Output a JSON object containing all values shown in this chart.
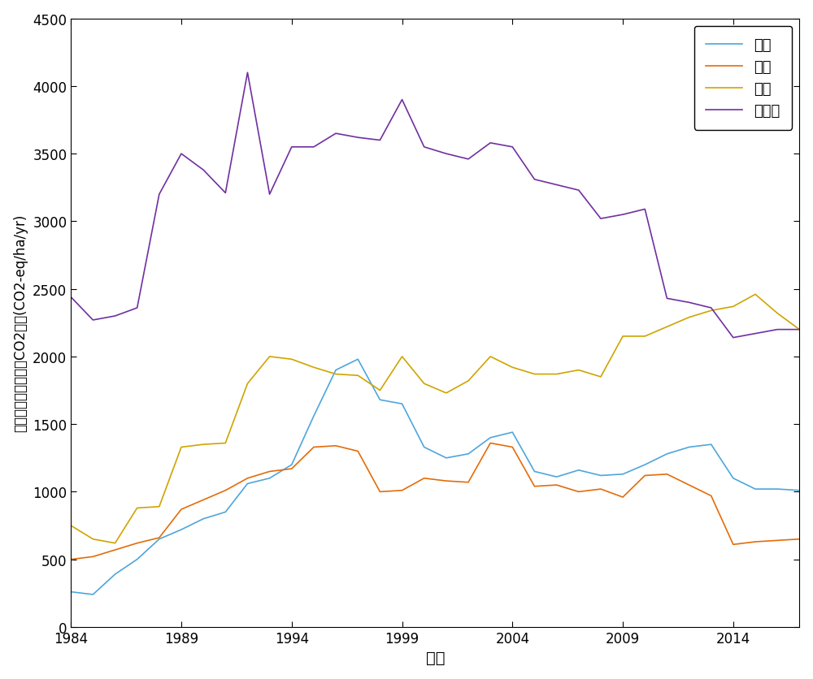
{
  "years": [
    1984,
    1985,
    1986,
    1987,
    1988,
    1989,
    1990,
    1991,
    1992,
    1993,
    1994,
    1995,
    1996,
    1997,
    1998,
    1999,
    2000,
    2001,
    2002,
    2003,
    2004,
    2005,
    2006,
    2007,
    2008,
    2009,
    2010,
    2011,
    2012,
    2013,
    2014,
    2015,
    2016,
    2017
  ],
  "soybean": [
    260,
    240,
    390,
    500,
    650,
    720,
    800,
    850,
    1060,
    1100,
    1200,
    1560,
    1900,
    1980,
    1680,
    1650,
    1330,
    1250,
    1280,
    1400,
    1440,
    1150,
    1110,
    1160,
    1120,
    1130,
    1200,
    1280,
    1330,
    1350,
    1100,
    1020,
    1020,
    1010
  ],
  "wheat": [
    500,
    520,
    570,
    620,
    660,
    870,
    940,
    1010,
    1100,
    1150,
    1170,
    1330,
    1340,
    1300,
    1000,
    1010,
    1100,
    1080,
    1070,
    1360,
    1330,
    1040,
    1050,
    1000,
    1020,
    960,
    1120,
    1130,
    1050,
    970,
    610,
    630,
    640,
    650
  ],
  "corn": [
    750,
    650,
    620,
    880,
    890,
    1330,
    1350,
    1360,
    1800,
    2000,
    1980,
    1920,
    1870,
    1860,
    1750,
    2000,
    1800,
    1730,
    1820,
    2000,
    1920,
    1870,
    1870,
    1900,
    1850,
    2150,
    2150,
    2220,
    2290,
    2340,
    2370,
    2460,
    2320,
    2200
  ],
  "single_rice": [
    2440,
    2270,
    2300,
    2360,
    3200,
    3500,
    3380,
    3210,
    4100,
    3200,
    3550,
    3550,
    3650,
    3620,
    3600,
    3900,
    3550,
    3500,
    3460,
    3580,
    3550,
    3310,
    3270,
    3230,
    3020,
    3050,
    3090,
    2430,
    2400,
    2360,
    2140,
    2170,
    2200,
    2200
  ],
  "colors": {
    "soybean": "#4EA6DC",
    "wheat": "#E36C09",
    "corn": "#CFA400",
    "single_rice": "#7030A0"
  },
  "legend_labels": {
    "soybean": "大豆",
    "wheat": "小麦",
    "corn": "玉米",
    "single_rice": "单季稻"
  },
  "xlabel": "年份",
  "ylabel_part1": "农业管理相关的单位CO",
  "ylabel_part2": "2",
  "ylabel_part3": "排放(CO",
  "ylabel_part4": "2",
  "ylabel_part5": "-eq/ha/yr)",
  "ylim": [
    0,
    4500
  ],
  "yticks": [
    0,
    500,
    1000,
    1500,
    2000,
    2500,
    3000,
    3500,
    4000,
    4500
  ],
  "xticks": [
    1984,
    1989,
    1994,
    1999,
    2004,
    2009,
    2014
  ],
  "linewidth": 1.2
}
